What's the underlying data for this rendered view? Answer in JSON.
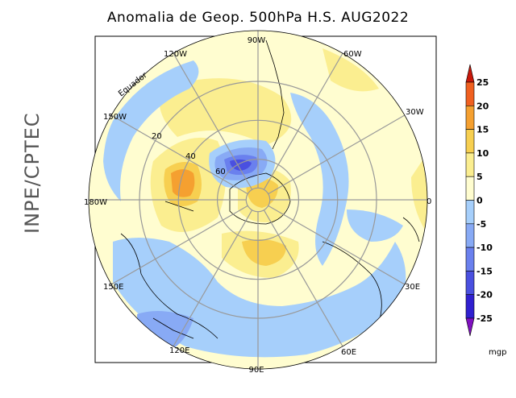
{
  "title": "Anomalia de Geop. 500hPa H.S. AUG2022",
  "side_label": "INPE/CPTEC",
  "longitude_labels": [
    "90W",
    "60W",
    "30W",
    "0",
    "30E",
    "60E",
    "90E",
    "120E",
    "150E",
    "180W",
    "150W",
    "120W"
  ],
  "latitude_labels": [
    "20",
    "40",
    "60"
  ],
  "equator_label": "Equador",
  "colorbar": {
    "ticks": [
      "25",
      "20",
      "15",
      "10",
      "5",
      "0",
      "-5",
      "-10",
      "-15",
      "-20",
      "-25"
    ],
    "unit": "mgp",
    "colors": [
      "#c8180a",
      "#f06020",
      "#f5a030",
      "#f7cf50",
      "#fbee90",
      "#fffdd0",
      "#a6cffb",
      "#88aaf5",
      "#6a80ee",
      "#4a50e0",
      "#3020d0",
      "#8010c0"
    ]
  }
}
